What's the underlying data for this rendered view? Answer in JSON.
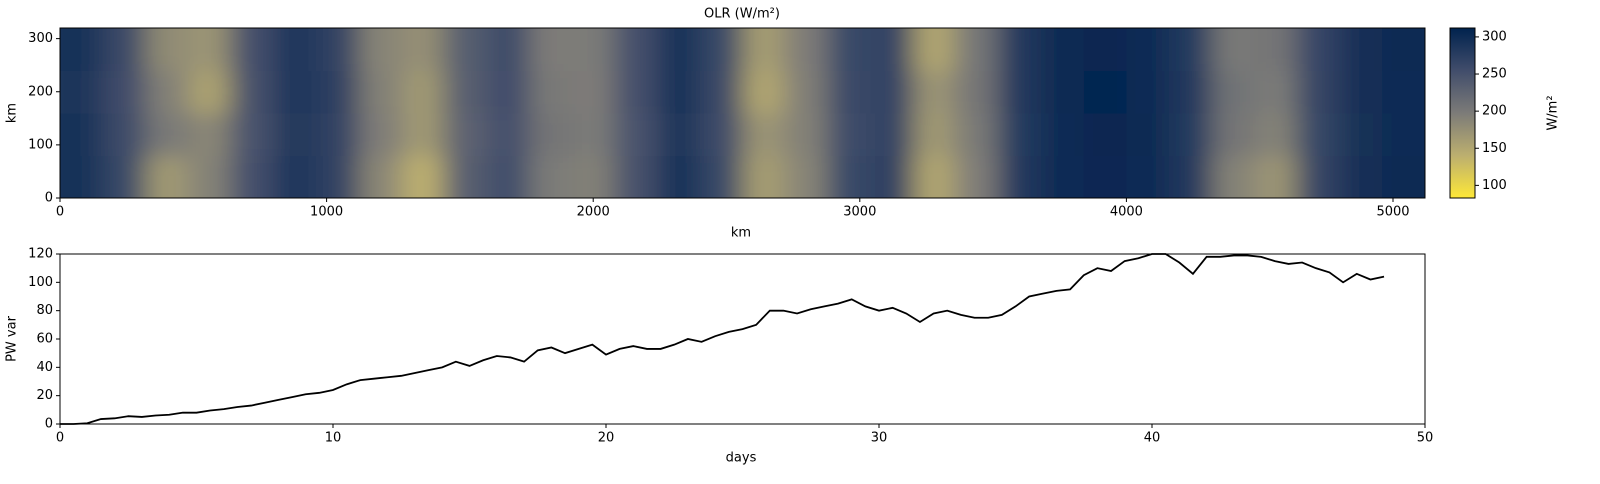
{
  "chart_data": [
    {
      "type": "heatmap",
      "title": "OLR (W/m²)",
      "xlabel": "km",
      "ylabel": "km",
      "xlim": [
        0,
        5120
      ],
      "ylim": [
        0,
        320
      ],
      "xticks": [
        0,
        1000,
        2000,
        3000,
        4000,
        5000
      ],
      "yticks": [
        0,
        100,
        200,
        300
      ],
      "z": [
        [
          292,
          262,
          165,
          190,
          252,
          286,
          270,
          185,
          140,
          232,
          255,
          198,
          192,
          250,
          290,
          262,
          160,
          188,
          262,
          272,
          150,
          195,
          282,
          300,
          305,
          300,
          282,
          190,
          170,
          266,
          296,
          302
        ],
        [
          290,
          258,
          200,
          185,
          248,
          284,
          268,
          195,
          165,
          228,
          252,
          205,
          198,
          248,
          288,
          258,
          170,
          192,
          258,
          270,
          165,
          200,
          280,
          300,
          306,
          302,
          280,
          205,
          190,
          264,
          294,
          300
        ],
        [
          288,
          256,
          192,
          155,
          250,
          285,
          272,
          192,
          165,
          232,
          256,
          200,
          196,
          252,
          290,
          260,
          150,
          194,
          260,
          268,
          170,
          205,
          282,
          302,
          307,
          301,
          282,
          208,
          198,
          266,
          295,
          301
        ],
        [
          290,
          260,
          180,
          170,
          252,
          286,
          270,
          188,
          175,
          234,
          258,
          196,
          198,
          252,
          291,
          262,
          160,
          196,
          262,
          270,
          150,
          204,
          283,
          302,
          306,
          300,
          280,
          200,
          205,
          265,
          296,
          302
        ]
      ],
      "colorbar": {
        "label": "W/m²",
        "lim": [
          83,
          312
        ],
        "ticks": [
          100,
          150,
          200,
          250,
          300
        ],
        "colormap": [
          "#fee838",
          "#bcaf6f",
          "#7c7b78",
          "#414d6b",
          "#00224e"
        ]
      }
    },
    {
      "type": "line",
      "xlabel": "days",
      "ylabel": "PW var",
      "xlim": [
        0,
        50
      ],
      "ylim": [
        0,
        120
      ],
      "xticks": [
        0,
        10,
        20,
        30,
        40,
        50
      ],
      "yticks": [
        0,
        20,
        40,
        60,
        80,
        100,
        120
      ],
      "color": "#000000",
      "x": [
        0,
        0.5,
        1,
        1.5,
        2,
        2.5,
        3,
        3.5,
        4,
        4.5,
        5,
        5.5,
        6,
        6.5,
        7,
        7.5,
        8,
        8.5,
        9,
        9.5,
        10,
        10.5,
        11,
        11.5,
        12,
        12.5,
        13,
        13.5,
        14,
        14.5,
        15,
        15.5,
        16,
        16.5,
        17,
        17.5,
        18,
        18.5,
        19,
        19.5,
        20,
        20.5,
        21,
        21.5,
        22,
        22.5,
        23,
        23.5,
        24,
        24.5,
        25,
        25.5,
        26,
        26.5,
        27,
        27.5,
        28,
        28.5,
        29,
        29.5,
        30,
        30.5,
        31,
        31.5,
        32,
        32.5,
        33,
        33.5,
        34,
        34.5,
        35,
        35.5,
        36,
        36.5,
        37,
        37.5,
        38,
        38.5,
        39,
        39.5,
        40,
        40.5,
        41,
        41.5,
        42,
        42.5,
        43,
        43.5,
        44,
        44.5,
        45,
        45.5,
        46,
        46.5,
        47,
        47.5,
        48,
        48.5
      ],
      "values": [
        0,
        0,
        0.5,
        3.5,
        4,
        5.5,
        5,
        6,
        6.5,
        8,
        8,
        9.5,
        10.5,
        12,
        13,
        15,
        17,
        19,
        21,
        22,
        24,
        28,
        31,
        32,
        33,
        34,
        36,
        38,
        40,
        44,
        41,
        45,
        48,
        47,
        44,
        52,
        54,
        50,
        53,
        56,
        49,
        53,
        55,
        53,
        53,
        56,
        60,
        58,
        62,
        65,
        67,
        70,
        80,
        80,
        78,
        81,
        83,
        85,
        88,
        83,
        80,
        82,
        78,
        72,
        78,
        80,
        77,
        75,
        75,
        77,
        83,
        90,
        92,
        94,
        95,
        105,
        110,
        108,
        115,
        117,
        120,
        120,
        114,
        106,
        118,
        118,
        119,
        119,
        118,
        115,
        113,
        114,
        110,
        107,
        100,
        106,
        102,
        104
      ]
    }
  ]
}
